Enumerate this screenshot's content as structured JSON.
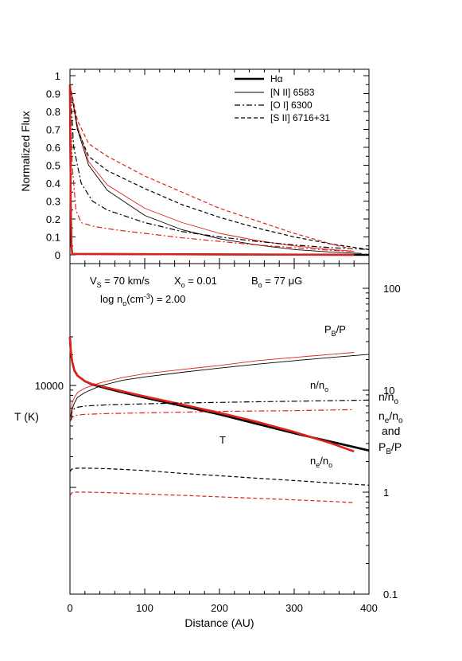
{
  "chart_data": [
    {
      "type": "line",
      "panel": "top",
      "ylabel": "Normalized Flux",
      "xlim": [
        0,
        400
      ],
      "ylim": [
        0,
        1
      ],
      "yticks": [
        "0",
        "0.1",
        "0.2",
        "0.3",
        "0.4",
        "0.5",
        "0.6",
        "0.7",
        "0.8",
        "0.9",
        "1"
      ],
      "legend_position": "top-right",
      "legend": [
        {
          "label": "Hα",
          "style": "thick-solid"
        },
        {
          "label": "[N II] 6583",
          "style": "thin-solid"
        },
        {
          "label": "[O I] 6300",
          "style": "dash-dot"
        },
        {
          "label": "[S II] 6716+31",
          "style": "dashed"
        }
      ],
      "colors": {
        "model_a": "#000000",
        "model_b": "#e0201b"
      },
      "series": [
        {
          "line": "Hα",
          "model": "black",
          "x": [
            0,
            1,
            2,
            3,
            400
          ],
          "y": [
            0.95,
            0.3,
            0.05,
            0.005,
            0.0
          ]
        },
        {
          "line": "Hα",
          "model": "red",
          "x": [
            0,
            1,
            2,
            3,
            380
          ],
          "y": [
            0.95,
            0.3,
            0.05,
            0.005,
            0.0
          ]
        },
        {
          "line": "[N II] 6583",
          "model": "black",
          "x": [
            0,
            10,
            25,
            50,
            100,
            150,
            200,
            250,
            300,
            350,
            390
          ],
          "y": [
            0.95,
            0.7,
            0.5,
            0.36,
            0.22,
            0.14,
            0.09,
            0.055,
            0.03,
            0.015,
            0.008
          ]
        },
        {
          "line": "[N II] 6583",
          "model": "red",
          "x": [
            0,
            10,
            25,
            50,
            100,
            150,
            200,
            250,
            300,
            350,
            380
          ],
          "y": [
            0.95,
            0.72,
            0.52,
            0.39,
            0.26,
            0.18,
            0.12,
            0.08,
            0.05,
            0.03,
            0.02
          ]
        },
        {
          "line": "[O I] 6300",
          "model": "black",
          "x": [
            0,
            5,
            15,
            30,
            50,
            100,
            150,
            200,
            250,
            300,
            350,
            400
          ],
          "y": [
            0.95,
            0.6,
            0.4,
            0.3,
            0.25,
            0.18,
            0.13,
            0.1,
            0.075,
            0.055,
            0.04,
            0.03
          ]
        },
        {
          "line": "[O I] 6300",
          "model": "red",
          "x": [
            0,
            3,
            8,
            15,
            30,
            60,
            100,
            150,
            200,
            250,
            300,
            350,
            380
          ],
          "y": [
            0.95,
            0.5,
            0.25,
            0.18,
            0.16,
            0.14,
            0.12,
            0.095,
            0.075,
            0.055,
            0.04,
            0.025,
            0.02
          ]
        },
        {
          "line": "[S II] 6716+31",
          "model": "black",
          "x": [
            0,
            10,
            25,
            50,
            100,
            150,
            200,
            250,
            300,
            350,
            400
          ],
          "y": [
            0.95,
            0.7,
            0.55,
            0.47,
            0.37,
            0.28,
            0.21,
            0.15,
            0.1,
            0.06,
            0.03
          ]
        },
        {
          "line": "[S II] 6716+31",
          "model": "red",
          "x": [
            0,
            10,
            25,
            50,
            100,
            150,
            200,
            250,
            300,
            350,
            380
          ],
          "y": [
            0.95,
            0.75,
            0.62,
            0.55,
            0.44,
            0.35,
            0.26,
            0.19,
            0.12,
            0.06,
            0.03
          ]
        }
      ]
    },
    {
      "type": "line",
      "panel": "bottom",
      "xlabel": "Distance (AU)",
      "ylabel_left": "T (K)",
      "ylabel_right_lines": [
        "n/no",
        "ne/no",
        "and",
        "PB/P"
      ],
      "xlim": [
        0,
        400
      ],
      "xticks": [
        "0",
        "100",
        "200",
        "300",
        "400"
      ],
      "yscale": "log",
      "ylim_left": [
        1000,
        30000
      ],
      "yticks_left": [
        "10000"
      ],
      "ylim_right": [
        0.1,
        100
      ],
      "yticks_right": [
        "0.1",
        "1",
        "10",
        "100"
      ],
      "annotations": {
        "vs": "VS = 70 km/s",
        "xo": "Xo = 0.01",
        "bo": "Bo = 77 μG",
        "log_n": "log no(cm-3) = 2.00",
        "pb_label": "PB/P",
        "n_label": "n/no",
        "ne_label": "ne/no",
        "t_label": "T"
      },
      "series": [
        {
          "quantity": "T",
          "axis": "left",
          "model": "black",
          "x": [
            0,
            1,
            3,
            6,
            10,
            20,
            30,
            50,
            75,
            100,
            150,
            200,
            250,
            300,
            350,
            400
          ],
          "y": [
            30000,
            22000,
            17000,
            14000,
            12500,
            11000,
            10200,
            9300,
            8400,
            7600,
            6300,
            5200,
            4200,
            3400,
            2800,
            2300
          ]
        },
        {
          "quantity": "T",
          "axis": "left",
          "model": "red",
          "x": [
            0,
            1,
            3,
            6,
            10,
            20,
            30,
            50,
            75,
            100,
            150,
            200,
            250,
            300,
            350,
            380
          ],
          "y": [
            30000,
            22000,
            17000,
            14000,
            12500,
            11000,
            10300,
            9500,
            8600,
            7800,
            6500,
            5400,
            4400,
            3500,
            2700,
            2250
          ]
        },
        {
          "quantity": "PB/P",
          "axis": "right",
          "model": "black",
          "x": [
            1,
            3,
            6,
            10,
            20,
            40,
            70,
            100,
            150,
            200,
            250,
            300,
            350,
            400
          ],
          "y": [
            5,
            6.5,
            7.5,
            8.5,
            9.5,
            11,
            12.5,
            13.5,
            15,
            16.5,
            18,
            19.5,
            21,
            22.5
          ]
        },
        {
          "quantity": "PB/P",
          "axis": "right",
          "model": "red",
          "x": [
            1,
            3,
            6,
            10,
            20,
            40,
            70,
            100,
            150,
            200,
            250,
            300,
            350,
            380
          ],
          "y": [
            5.5,
            7.5,
            8.5,
            9.5,
            10.5,
            11.8,
            13.3,
            14.5,
            16,
            17.5,
            19.5,
            21,
            22.5,
            23.5
          ]
        },
        {
          "quantity": "n/no",
          "axis": "right",
          "model": "black",
          "x": [
            1,
            3,
            6,
            10,
            20,
            50,
            100,
            150,
            200,
            250,
            300,
            350,
            400
          ],
          "y": [
            5.5,
            6.2,
            6.6,
            6.8,
            7.0,
            7.2,
            7.35,
            7.5,
            7.6,
            7.7,
            7.8,
            7.9,
            8.0
          ]
        },
        {
          "quantity": "n/no",
          "axis": "right",
          "model": "red",
          "x": [
            1,
            3,
            6,
            10,
            20,
            50,
            100,
            150,
            200,
            250,
            300,
            350,
            380
          ],
          "y": [
            5.0,
            5.4,
            5.6,
            5.7,
            5.8,
            5.9,
            6.0,
            6.1,
            6.2,
            6.25,
            6.3,
            6.4,
            6.45
          ]
        },
        {
          "quantity": "ne/no",
          "axis": "right",
          "model": "black",
          "x": [
            0.5,
            2,
            5,
            10,
            25,
            50,
            100,
            150,
            200,
            250,
            300,
            350,
            400
          ],
          "y": [
            1.6,
            1.68,
            1.7,
            1.72,
            1.72,
            1.7,
            1.63,
            1.53,
            1.45,
            1.37,
            1.3,
            1.23,
            1.17
          ]
        },
        {
          "quantity": "ne/no",
          "axis": "right",
          "model": "red",
          "x": [
            0.5,
            2,
            5,
            10,
            25,
            50,
            100,
            150,
            200,
            250,
            300,
            350,
            380
          ],
          "y": [
            0.93,
            0.98,
            1.0,
            1.0,
            1.0,
            0.99,
            0.96,
            0.93,
            0.9,
            0.87,
            0.84,
            0.81,
            0.79
          ]
        }
      ]
    }
  ]
}
